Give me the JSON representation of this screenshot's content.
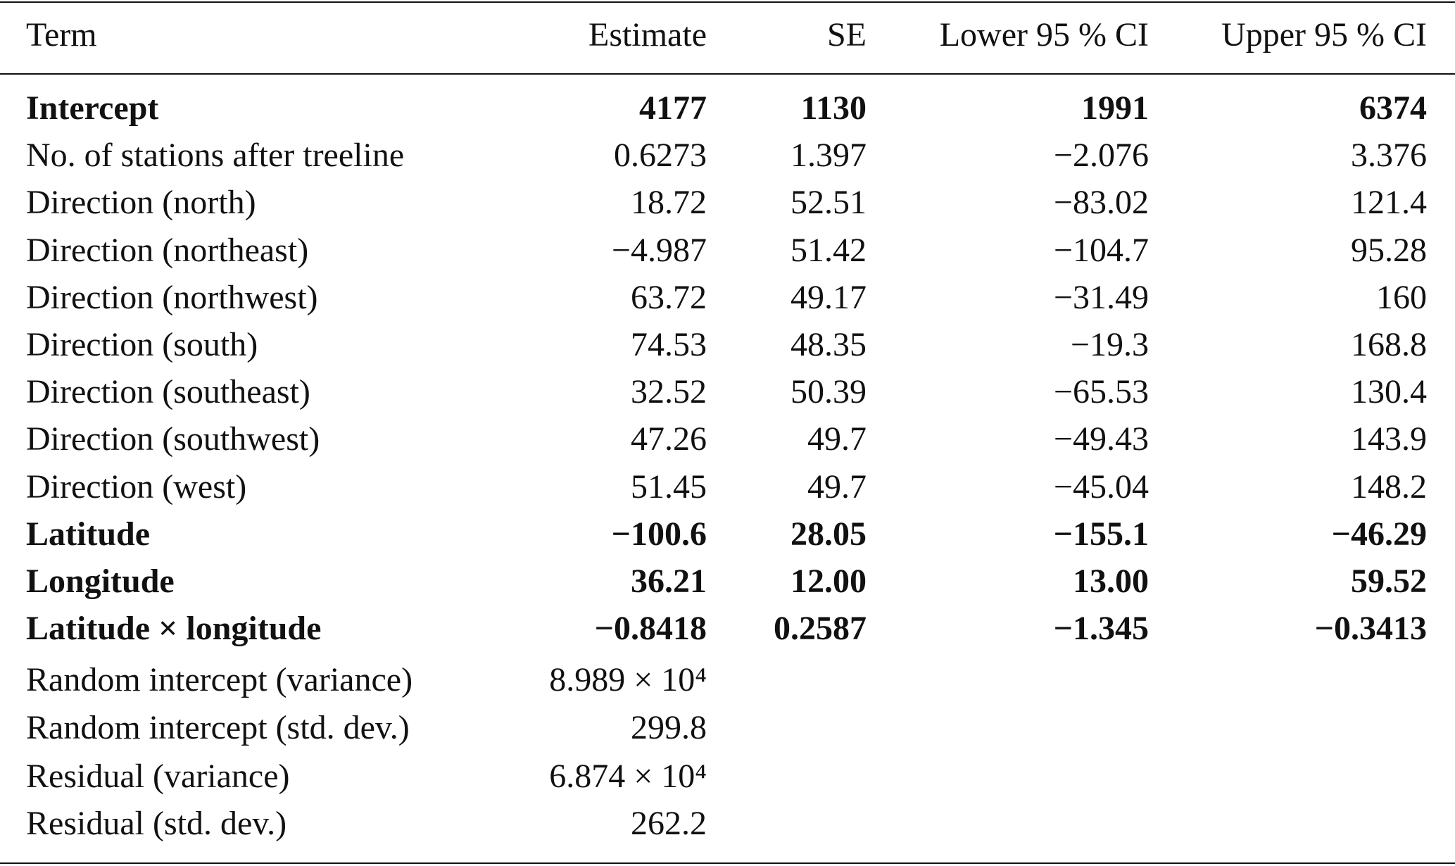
{
  "table": {
    "header": [
      "Term",
      "Estimate",
      "SE",
      "Lower 95 % CI",
      "Upper 95 % CI"
    ],
    "rows": [
      [
        "Intercept",
        "4177",
        "1130",
        "1991",
        "6374"
      ],
      [
        "No. of stations after treeline",
        "0.6273",
        "1.397",
        "−2.076",
        "3.376"
      ],
      [
        "Direction (north)",
        "18.72",
        "52.51",
        "−83.02",
        "121.4"
      ],
      [
        "Direction (northeast)",
        "−4.987",
        "51.42",
        "−104.7",
        "95.28"
      ],
      [
        "Direction (northwest)",
        "63.72",
        "49.17",
        "−31.49",
        "160"
      ],
      [
        "Direction (south)",
        "74.53",
        "48.35",
        "−19.3",
        "168.8"
      ],
      [
        "Direction (southeast)",
        "32.52",
        "50.39",
        "−65.53",
        "130.4"
      ],
      [
        "Direction (southwest)",
        "47.26",
        "49.7",
        "−49.43",
        "143.9"
      ],
      [
        "Direction (west)",
        "51.45",
        "49.7",
        "−45.04",
        "148.2"
      ],
      [
        "Latitude",
        "−100.6",
        "28.05",
        "−155.1",
        "−46.29"
      ],
      [
        "Longitude",
        "36.21",
        "12.00",
        "13.00",
        "59.52"
      ],
      [
        "Latitude × longitude",
        "−0.8418",
        "0.2587",
        "−1.345",
        "−0.3413"
      ],
      [
        "Random intercept (variance)",
        "8.989 × 10⁴"
      ],
      [
        "Random intercept (std. dev.)",
        "299.8"
      ],
      [
        "Residual (variance)",
        "6.874 × 10⁴"
      ],
      [
        "Residual (std. dev.)",
        "262.2"
      ]
    ]
  }
}
